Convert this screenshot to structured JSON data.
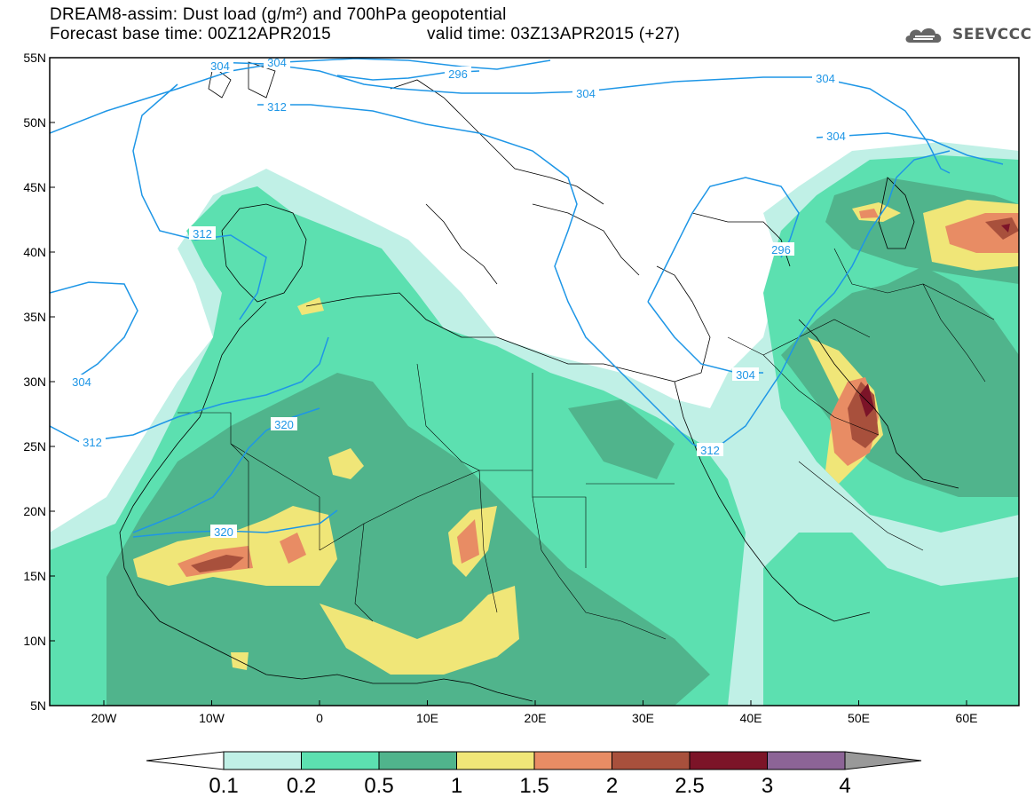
{
  "header": {
    "title_line1": "DREAM8-assim: Dust load (g/m²) and 700hPa geopotential",
    "title_line2_base": "Forecast base time: 00Z12APR2015",
    "title_line2_valid": "valid time: 03Z13APR2015 (+27)",
    "logo_text": "SEEVCCC"
  },
  "map": {
    "lat_labels": [
      "55N",
      "50N",
      "45N",
      "40N",
      "35N",
      "30N",
      "25N",
      "20N",
      "15N",
      "10N",
      "5N"
    ],
    "lon_labels": [
      "20W",
      "10W",
      "0",
      "10E",
      "20E",
      "30E",
      "40E",
      "50E",
      "60E"
    ],
    "contour_labels": [
      "304",
      "304",
      "296",
      "304",
      "304",
      "304",
      "312",
      "312",
      "312",
      "304",
      "296",
      "304",
      "312",
      "320",
      "320"
    ]
  },
  "colorbar": {
    "levels": [
      "0.1",
      "0.2",
      "0.5",
      "1",
      "1.5",
      "2",
      "2.5",
      "3",
      "4"
    ],
    "colors": [
      "#c0f0e6",
      "#5ce0b0",
      "#50b48c",
      "#f0e678",
      "#e88c64",
      "#a8503c",
      "#7c1428",
      "#8c6496"
    ]
  }
}
